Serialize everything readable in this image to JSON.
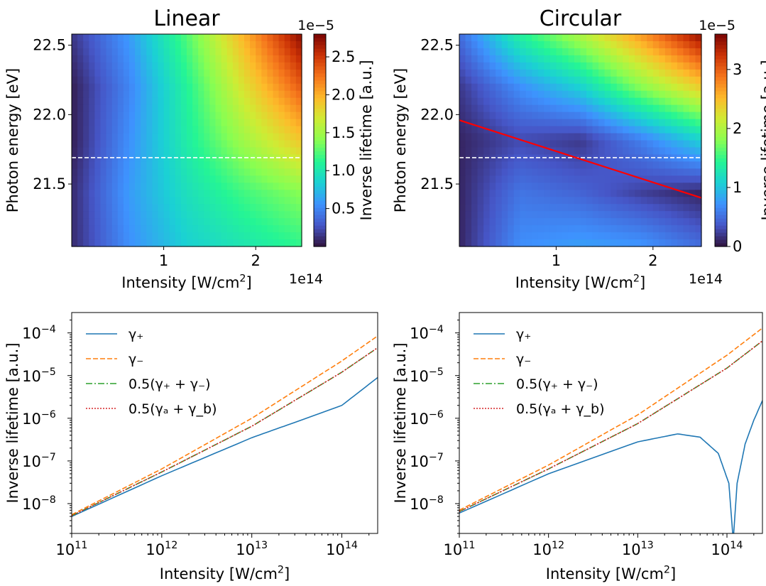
{
  "chart_data": [
    {
      "type": "heatmap",
      "title": "Linear",
      "xlabel": "Intensity [W/cm²]",
      "x_offset_label": "1e14",
      "ylabel": "Photon energy [eV]",
      "xlim": [
        0.0,
        2.5
      ],
      "ylim": [
        21.05,
        22.58
      ],
      "xticks": [
        1,
        2
      ],
      "yticks": [
        21.5,
        22.0,
        22.5
      ],
      "colorbar": {
        "label": "Inverse lifetime [a.u.]",
        "offset_label": "1e−5",
        "range": [
          0.0,
          2.8
        ],
        "ticks": [
          0.5,
          1.0,
          1.5,
          2.0,
          2.5
        ],
        "colormap": "turbo"
      },
      "dashed_line": {
        "y": 21.69,
        "color": "#ffffff"
      },
      "z_grid": {
        "x": [
          0.0,
          0.625,
          1.25,
          1.875,
          2.5
        ],
        "y": [
          21.05,
          21.43,
          21.81,
          22.2,
          22.58
        ],
        "values": [
          [
            0.1,
            0.55,
            0.85,
            1.0,
            1.15
          ],
          [
            0.1,
            0.6,
            0.95,
            1.2,
            1.4
          ],
          [
            0.05,
            0.55,
            1.05,
            1.5,
            1.9
          ],
          [
            0.05,
            0.5,
            1.1,
            1.75,
            2.35
          ],
          [
            0.15,
            0.6,
            1.25,
            2.0,
            2.75
          ]
        ]
      }
    },
    {
      "type": "heatmap",
      "title": "Circular",
      "xlabel": "Intensity [W/cm²]",
      "x_offset_label": "1e14",
      "ylabel": "Photon energy [eV]",
      "xlim": [
        0.0,
        2.5
      ],
      "ylim": [
        21.05,
        22.58
      ],
      "xticks": [
        1,
        2
      ],
      "yticks": [
        21.5,
        22.0,
        22.5
      ],
      "colorbar": {
        "label": "Inverse lifetime [a.u.]",
        "offset_label": "1e−5",
        "range": [
          0.0,
          3.6
        ],
        "ticks": [
          0,
          1,
          2,
          3
        ],
        "colormap": "turbo"
      },
      "dashed_line": {
        "y": 21.69,
        "color": "#ffffff"
      },
      "red_line": {
        "x": [
          0.0,
          2.5
        ],
        "y": [
          21.96,
          21.4
        ],
        "color": "#ff0000"
      },
      "z_grid": {
        "x": [
          0.0,
          0.625,
          1.25,
          1.875,
          2.5
        ],
        "y": [
          21.05,
          21.43,
          21.81,
          22.2,
          22.58
        ],
        "values": [
          [
            0.1,
            0.7,
            0.8,
            0.75,
            0.5
          ],
          [
            0.1,
            0.55,
            0.45,
            0.25,
            0.1
          ],
          [
            0.1,
            0.3,
            0.2,
            0.6,
            1.1
          ],
          [
            0.2,
            0.7,
            1.1,
            1.8,
            2.4
          ],
          [
            0.5,
            1.4,
            2.0,
            2.7,
            3.5
          ]
        ]
      }
    },
    {
      "type": "line",
      "xlabel": "Intensity [W/cm²]",
      "ylabel": "Inverse lifetime [a.u.]",
      "xscale": "log",
      "yscale": "log",
      "xlim": [
        100000000000.0,
        250000000000000.0
      ],
      "ylim": [
        2e-09,
        0.0003
      ],
      "xticks": [
        {
          "b": "10",
          "e": "11"
        },
        {
          "b": "10",
          "e": "12"
        },
        {
          "b": "10",
          "e": "13"
        },
        {
          "b": "10",
          "e": "14"
        }
      ],
      "yticks": [
        {
          "b": "10",
          "e": "−8"
        },
        {
          "b": "10",
          "e": "−7"
        },
        {
          "b": "10",
          "e": "−6"
        },
        {
          "b": "10",
          "e": "−5"
        },
        {
          "b": "10",
          "e": "−4"
        }
      ],
      "legend": {
        "placement": "upper-left"
      },
      "series": [
        {
          "name": "γ₊",
          "color": "#1f77b4",
          "style": "solid",
          "x": [
            100000000000.0,
            1000000000000.0,
            10000000000000.0,
            30000000000000.0,
            100000000000000.0,
            250000000000000.0
          ],
          "y": [
            5e-09,
            4.5e-08,
            3.5e-07,
            8e-07,
            2e-06,
            9e-06
          ]
        },
        {
          "name": "γ₋",
          "color": "#ff7f0e",
          "style": "dashed",
          "x": [
            100000000000.0,
            1000000000000.0,
            10000000000000.0,
            100000000000000.0,
            250000000000000.0
          ],
          "y": [
            5.5e-09,
            6.5e-08,
            1e-06,
            2.2e-05,
            8.5e-05
          ]
        },
        {
          "name": "0.5(γ₊ + γ₋)",
          "color": "#2ca02c",
          "style": "dashdot",
          "x": [
            100000000000.0,
            1000000000000.0,
            10000000000000.0,
            100000000000000.0,
            250000000000000.0
          ],
          "y": [
            5.2e-09,
            5.5e-08,
            6.5e-07,
            1.2e-05,
            4.5e-05
          ]
        },
        {
          "name": "0.5(γₐ + γ_b)",
          "color": "#d62728",
          "style": "dotted",
          "x": [
            100000000000.0,
            1000000000000.0,
            10000000000000.0,
            100000000000000.0,
            250000000000000.0
          ],
          "y": [
            5.2e-09,
            5.5e-08,
            6.5e-07,
            1.2e-05,
            4.5e-05
          ]
        }
      ]
    },
    {
      "type": "line",
      "xlabel": "Intensity [W/cm²]",
      "ylabel": "Inverse lifetime [a.u.]",
      "xscale": "log",
      "yscale": "log",
      "xlim": [
        100000000000.0,
        250000000000000.0
      ],
      "ylim": [
        2e-09,
        0.0003
      ],
      "xticks": [
        {
          "b": "10",
          "e": "11"
        },
        {
          "b": "10",
          "e": "12"
        },
        {
          "b": "10",
          "e": "13"
        },
        {
          "b": "10",
          "e": "14"
        }
      ],
      "yticks": [
        {
          "b": "10",
          "e": "−8"
        },
        {
          "b": "10",
          "e": "−7"
        },
        {
          "b": "10",
          "e": "−6"
        },
        {
          "b": "10",
          "e": "−5"
        },
        {
          "b": "10",
          "e": "−4"
        }
      ],
      "legend": {
        "placement": "upper-left"
      },
      "series": [
        {
          "name": "γ₊",
          "color": "#1f77b4",
          "style": "solid",
          "x": [
            100000000000.0,
            1000000000000.0,
            10000000000000.0,
            28000000000000.0,
            50000000000000.0,
            80000000000000.0,
            105000000000000.0,
            116000000000000.0,
            119000000000000.0,
            130000000000000.0,
            160000000000000.0,
            200000000000000.0,
            250000000000000.0
          ],
          "y": [
            6e-09,
            5e-08,
            2.8e-07,
            4.3e-07,
            3.6e-07,
            1.5e-07,
            3e-08,
            2e-09,
            2e-09,
            3e-08,
            2.5e-07,
            9e-07,
            2.6e-06
          ]
        },
        {
          "name": "γ₋",
          "color": "#ff7f0e",
          "style": "dashed",
          "x": [
            100000000000.0,
            1000000000000.0,
            10000000000000.0,
            100000000000000.0,
            250000000000000.0
          ],
          "y": [
            7e-09,
            8e-08,
            1.2e-06,
            3e-05,
            0.00013
          ]
        },
        {
          "name": "0.5(γ₊ + γ₋)",
          "color": "#2ca02c",
          "style": "dashdot",
          "x": [
            100000000000.0,
            1000000000000.0,
            10000000000000.0,
            100000000000000.0,
            250000000000000.0
          ],
          "y": [
            6.5e-09,
            6.5e-08,
            7.5e-07,
            1.5e-05,
            6.5e-05
          ]
        },
        {
          "name": "0.5(γₐ + γ_b)",
          "color": "#d62728",
          "style": "dotted",
          "x": [
            100000000000.0,
            1000000000000.0,
            10000000000000.0,
            100000000000000.0,
            250000000000000.0
          ],
          "y": [
            6.5e-09,
            6.5e-08,
            7.5e-07,
            1.5e-05,
            6.5e-05
          ]
        }
      ]
    }
  ]
}
